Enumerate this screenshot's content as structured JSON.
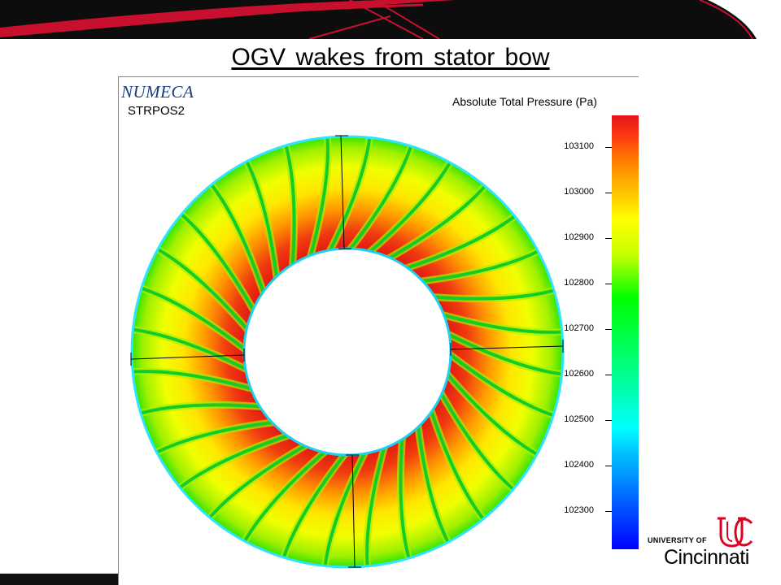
{
  "slide": {
    "title": "OGV wakes  from  stator  bow"
  },
  "plot": {
    "brand": "NUMECA",
    "run_name": "STRPOS2",
    "colorbar_title": "Absolute Total Pressure (Pa)",
    "colorbar_ticks": [
      "103100",
      "103000",
      "102900",
      "102800",
      "102700",
      "102600",
      "102500",
      "102400",
      "102300"
    ],
    "colorbar_colors": {
      "high": "#e4141b",
      "mid_high": "#ffff00",
      "mid": "#00ff00",
      "mid_low": "#00ffff",
      "low": "#0000ff"
    },
    "wake_count": 32
  },
  "footer": {
    "logo_university_of": "UNIVERSITY OF",
    "logo_name": "Cincinnati",
    "logo_color": "#e00122"
  }
}
